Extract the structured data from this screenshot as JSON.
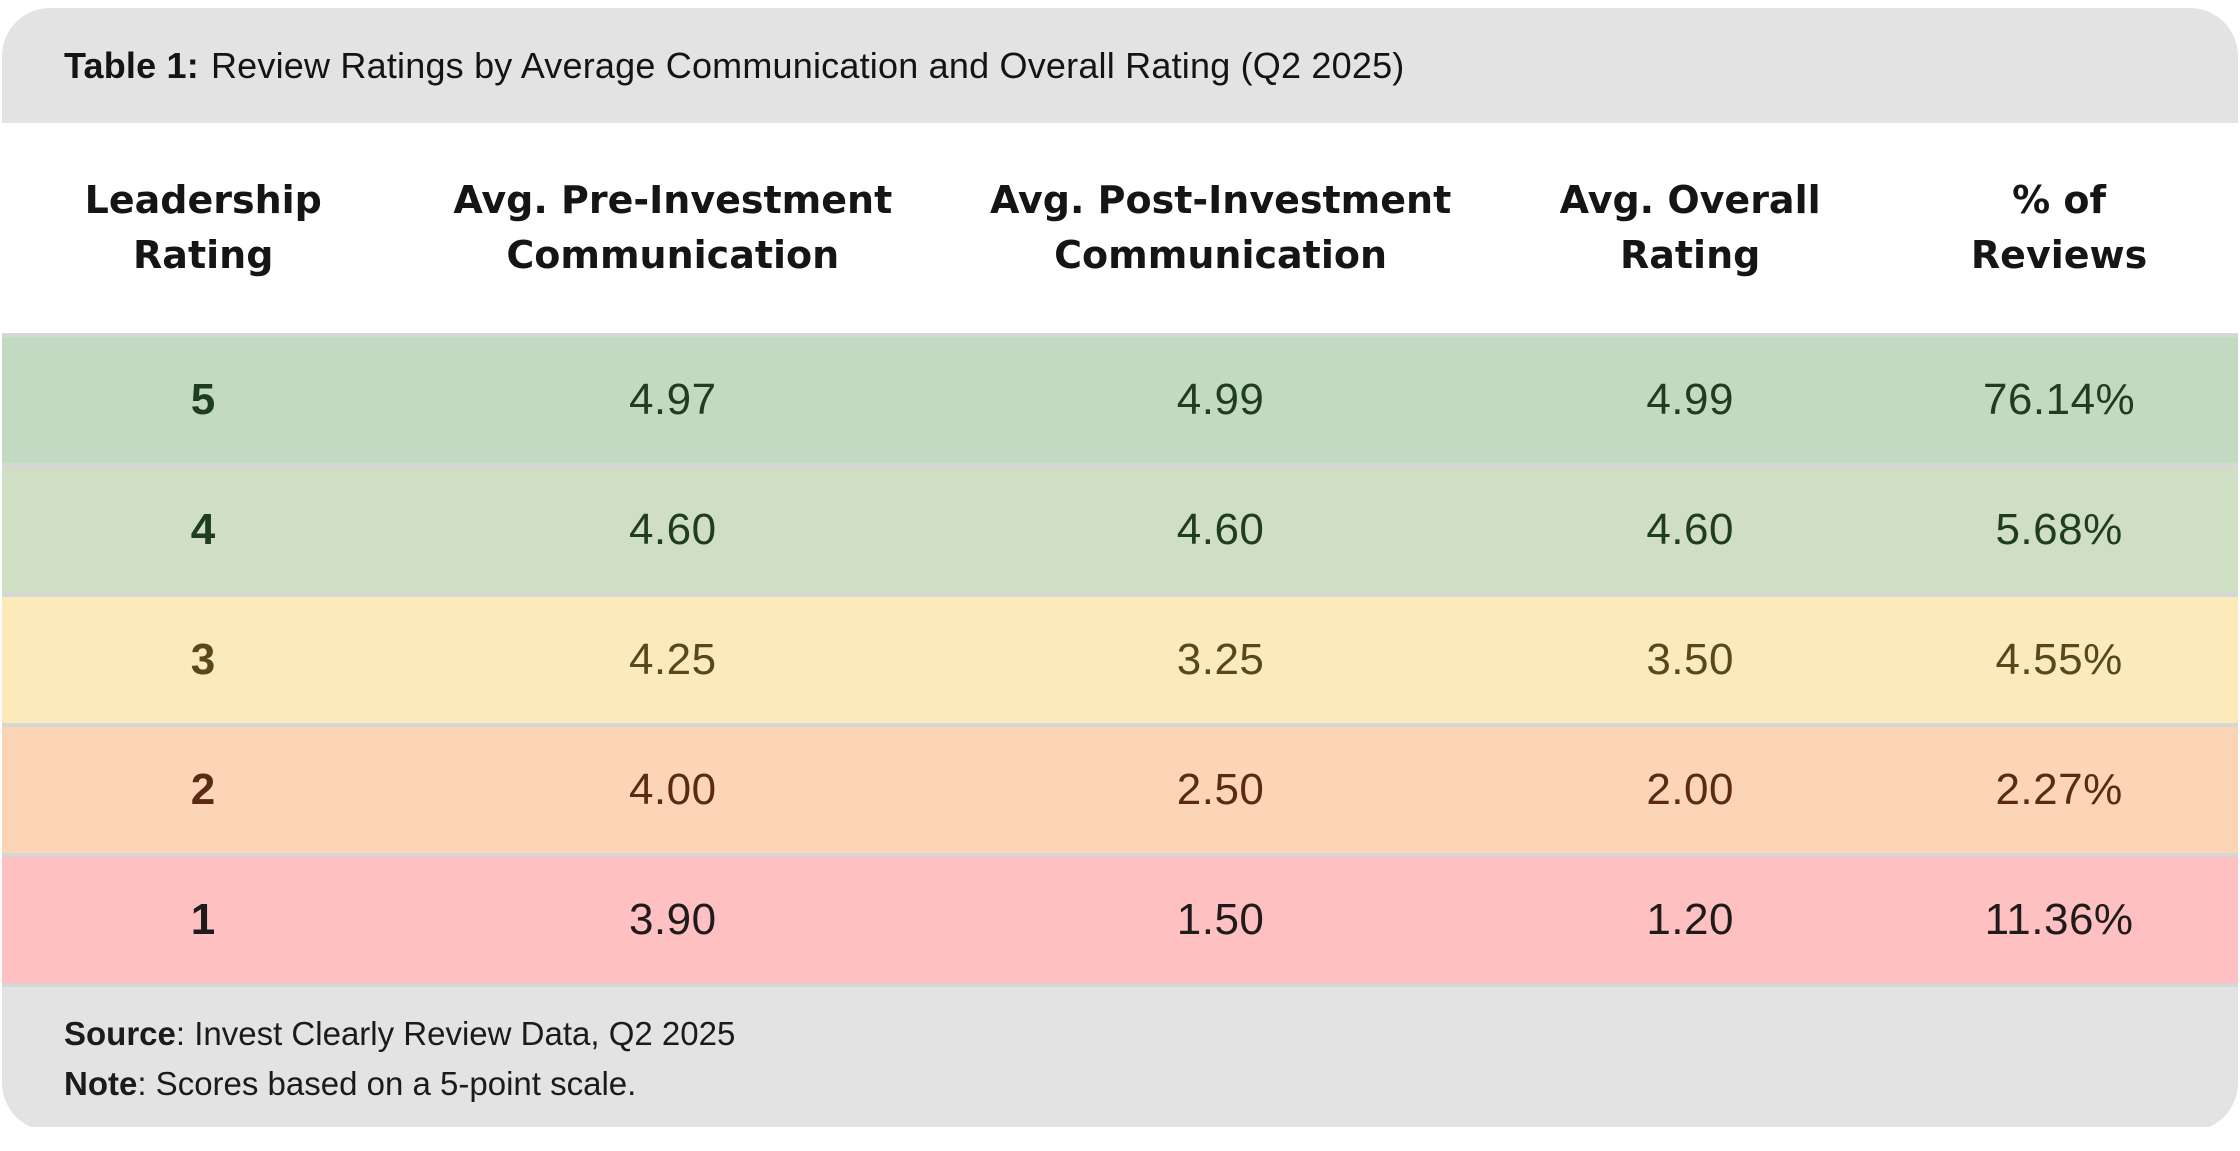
{
  "title": {
    "label": "Table 1:",
    "text": "Review Ratings by Average Communication and Overall Rating (Q2 2025)"
  },
  "table": {
    "columns": [
      {
        "label": "Leadership Rating",
        "lines": [
          "Leadership",
          "Rating"
        ]
      },
      {
        "label": "Avg. Pre-Investment Communication",
        "lines": [
          "Avg. Pre-Investment",
          "Communication"
        ]
      },
      {
        "label": "Avg. Post-Investment Communication",
        "lines": [
          "Avg. Post-Investment",
          "Communication"
        ]
      },
      {
        "label": "Avg. Overall Rating",
        "lines": [
          "Avg. Overall",
          "Rating"
        ]
      },
      {
        "label": "% of Reviews",
        "lines": [
          "% of",
          "Reviews"
        ]
      }
    ],
    "rows": [
      {
        "rating": "5",
        "pre": "4.97",
        "post": "4.99",
        "overall": "4.99",
        "pct": "76.14%",
        "bg": "#c1dac1",
        "fg": "#1f3d22"
      },
      {
        "rating": "4",
        "pre": "4.60",
        "post": "4.60",
        "overall": "4.60",
        "pct": "5.68%",
        "bg": "#d0dec3",
        "fg": "#1f3d22"
      },
      {
        "rating": "3",
        "pre": "4.25",
        "post": "3.25",
        "overall": "3.50",
        "pct": "4.55%",
        "bg": "#fdeabb",
        "fg": "#57491a"
      },
      {
        "rating": "2",
        "pre": "4.00",
        "post": "2.50",
        "overall": "2.00",
        "pct": "2.27%",
        "bg": "#fbd5b6",
        "fg": "#5a2a12"
      },
      {
        "rating": "1",
        "pre": "3.90",
        "post": "1.50",
        "overall": "1.20",
        "pct": "11.36%",
        "bg": "#fec0c0",
        "fg": "#1f1b1b"
      }
    ]
  },
  "footer": {
    "source_label": "Source",
    "source_text": ": Invest Clearly Review Data, Q2 2025",
    "note_label": "Note",
    "note_text": ": Scores based on a 5-point scale."
  },
  "colors": {
    "card_gray": "#e3e3e3",
    "separator": "#d6d6d6",
    "row_5_bg": "#c1dac1",
    "row_4_bg": "#d0dec3",
    "row_3_bg": "#fdeabb",
    "row_2_bg": "#fbd5b6",
    "row_1_bg": "#fec0c0"
  },
  "chart_data": {
    "type": "table",
    "title": "Table 1: Review Ratings by Average Communication and Overall Rating (Q2 2025)",
    "columns": [
      "Leadership Rating",
      "Avg. Pre-Investment Communication",
      "Avg. Post-Investment Communication",
      "Avg. Overall Rating",
      "% of Reviews"
    ],
    "rows": [
      [
        5,
        4.97,
        4.99,
        4.99,
        "76.14%"
      ],
      [
        4,
        4.6,
        4.6,
        4.6,
        "5.68%"
      ],
      [
        3,
        4.25,
        3.25,
        3.5,
        "4.55%"
      ],
      [
        2,
        4.0,
        2.5,
        2.0,
        "2.27%"
      ],
      [
        1,
        3.9,
        1.5,
        1.2,
        "11.36%"
      ]
    ],
    "source": "Invest Clearly Review Data, Q2 2025",
    "note": "Scores based on a 5-point scale."
  }
}
